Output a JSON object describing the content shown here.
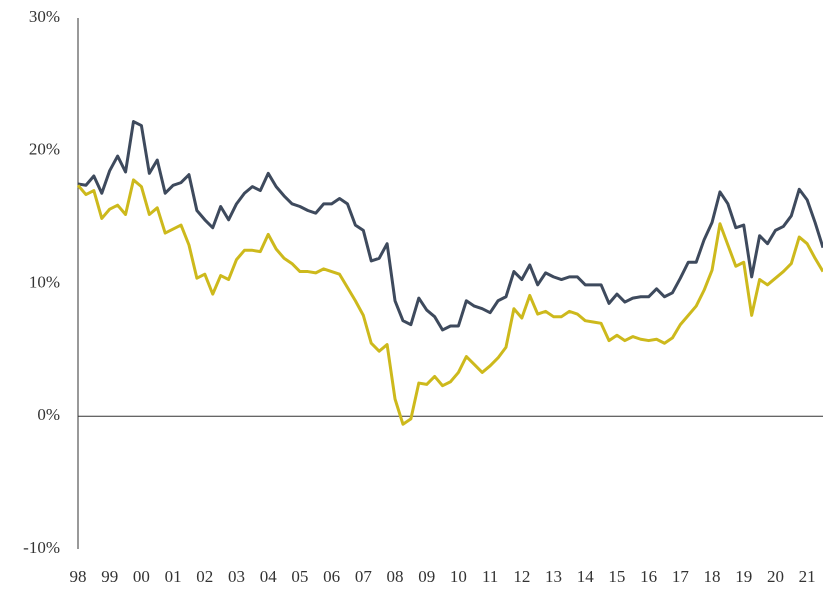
{
  "chart_data": {
    "type": "line",
    "x": [
      1998,
      1998.25,
      1998.5,
      1998.75,
      1999,
      1999.25,
      1999.5,
      1999.75,
      2000,
      2000.25,
      2000.5,
      2000.75,
      2001,
      2001.25,
      2001.5,
      2001.75,
      2002,
      2002.25,
      2002.5,
      2002.75,
      2003,
      2003.25,
      2003.5,
      2003.75,
      2004,
      2004.25,
      2004.5,
      2004.75,
      2005,
      2005.25,
      2005.5,
      2005.75,
      2006,
      2006.25,
      2006.5,
      2006.75,
      2007,
      2007.25,
      2007.5,
      2007.75,
      2008,
      2008.25,
      2008.5,
      2008.75,
      2009,
      2009.25,
      2009.5,
      2009.75,
      2010,
      2010.25,
      2010.5,
      2010.75,
      2011,
      2011.25,
      2011.5,
      2011.75,
      2012,
      2012.25,
      2012.5,
      2012.75,
      2013,
      2013.25,
      2013.5,
      2013.75,
      2014,
      2014.25,
      2014.5,
      2014.75,
      2015,
      2015.25,
      2015.5,
      2015.75,
      2016,
      2016.25,
      2016.5,
      2016.75,
      2017,
      2017.25,
      2017.5,
      2017.75,
      2018,
      2018.25,
      2018.5,
      2018.75,
      2019,
      2019.25,
      2019.5,
      2019.75,
      2020,
      2020.25,
      2020.5,
      2020.75,
      2021,
      2021.25,
      2021.5
    ],
    "series": [
      {
        "color": "#3e4a5d",
        "values": [
          17.5,
          17.4,
          18.1,
          16.8,
          18.5,
          19.6,
          18.4,
          22.2,
          21.9,
          18.3,
          19.3,
          16.8,
          17.4,
          17.6,
          18.2,
          15.5,
          14.8,
          14.2,
          15.8,
          14.8,
          16.0,
          16.8,
          17.3,
          17.0,
          18.3,
          17.3,
          16.6,
          16.0,
          15.8,
          15.5,
          15.3,
          16.0,
          16.0,
          16.4,
          16.0,
          14.4,
          14.0,
          11.7,
          11.9,
          13.0,
          8.7,
          7.2,
          6.9,
          8.9,
          8.0,
          7.5,
          6.5,
          6.8,
          6.8,
          8.7,
          8.3,
          8.1,
          7.8,
          8.7,
          9.0,
          10.9,
          10.3,
          11.4,
          9.9,
          10.8,
          10.5,
          10.3,
          10.5,
          10.5,
          9.9,
          9.9,
          9.9,
          8.5,
          9.2,
          8.6,
          8.9,
          9.0,
          9.0,
          9.6,
          9.0,
          9.3,
          10.4,
          11.6,
          11.6,
          13.3,
          14.6,
          16.9,
          16.0,
          14.2,
          14.4,
          10.5,
          13.6,
          13.0,
          14.0,
          14.3,
          15.1,
          17.1,
          16.3,
          14.6,
          12.7
        ]
      },
      {
        "color": "#cdb91c",
        "values": [
          17.4,
          16.7,
          17.0,
          14.9,
          15.6,
          15.9,
          15.2,
          17.8,
          17.3,
          15.2,
          15.7,
          13.8,
          14.1,
          14.4,
          12.9,
          10.4,
          10.7,
          9.2,
          10.6,
          10.3,
          11.8,
          12.5,
          12.5,
          12.4,
          13.7,
          12.6,
          11.9,
          11.5,
          10.9,
          10.9,
          10.8,
          11.1,
          10.9,
          10.7,
          9.7,
          8.7,
          7.6,
          5.5,
          4.9,
          5.4,
          1.3,
          -0.6,
          -0.2,
          2.5,
          2.4,
          3.0,
          2.3,
          2.6,
          3.3,
          4.5,
          3.9,
          3.3,
          3.8,
          4.4,
          5.2,
          8.1,
          7.4,
          9.1,
          7.7,
          7.9,
          7.5,
          7.5,
          7.9,
          7.7,
          7.2,
          7.1,
          7.0,
          5.7,
          6.1,
          5.7,
          6.0,
          5.8,
          5.7,
          5.8,
          5.5,
          5.9,
          6.9,
          7.6,
          8.3,
          9.5,
          11.0,
          14.5,
          12.9,
          11.3,
          11.6,
          7.6,
          10.3,
          9.9,
          10.4,
          10.9,
          11.5,
          13.5,
          13.0,
          11.9,
          10.9
        ]
      }
    ],
    "xlim": [
      1998,
      2021.5
    ],
    "xticks": [
      {
        "value": 1998,
        "label": "98"
      },
      {
        "value": 1999,
        "label": "99"
      },
      {
        "value": 2000,
        "label": "00"
      },
      {
        "value": 2001,
        "label": "01"
      },
      {
        "value": 2002,
        "label": "02"
      },
      {
        "value": 2003,
        "label": "03"
      },
      {
        "value": 2004,
        "label": "04"
      },
      {
        "value": 2005,
        "label": "05"
      },
      {
        "value": 2006,
        "label": "06"
      },
      {
        "value": 2007,
        "label": "07"
      },
      {
        "value": 2008,
        "label": "08"
      },
      {
        "value": 2009,
        "label": "09"
      },
      {
        "value": 2010,
        "label": "10"
      },
      {
        "value": 2011,
        "label": "11"
      },
      {
        "value": 2012,
        "label": "12"
      },
      {
        "value": 2013,
        "label": "13"
      },
      {
        "value": 2014,
        "label": "14"
      },
      {
        "value": 2015,
        "label": "15"
      },
      {
        "value": 2016,
        "label": "16"
      },
      {
        "value": 2017,
        "label": "17"
      },
      {
        "value": 2018,
        "label": "18"
      },
      {
        "value": 2019,
        "label": "19"
      },
      {
        "value": 2020,
        "label": "20"
      },
      {
        "value": 2021,
        "label": "21"
      }
    ],
    "ylim": [
      -10,
      30
    ],
    "yticks": [
      {
        "value": -10,
        "label": "-10%"
      },
      {
        "value": 0,
        "label": "0%"
      },
      {
        "value": 10,
        "label": "10%"
      },
      {
        "value": 20,
        "label": "20%"
      },
      {
        "value": 30,
        "label": "30%"
      }
    ],
    "grid": false
  }
}
